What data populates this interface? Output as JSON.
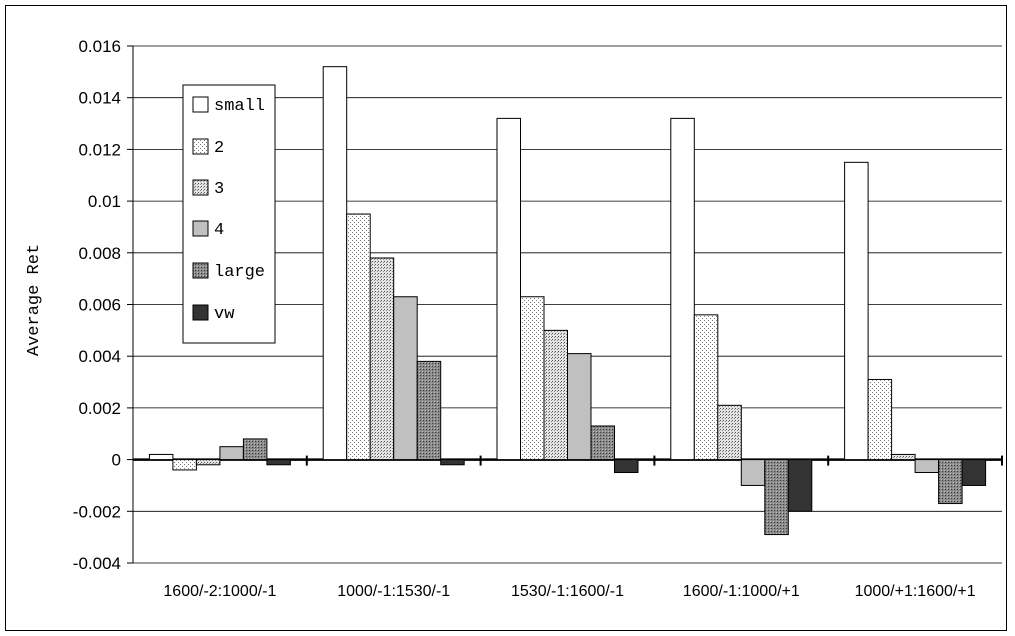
{
  "chart_data": {
    "type": "bar",
    "title": "",
    "xlabel": "",
    "ylabel": "Average Ret",
    "ylim": [
      -0.004,
      0.016
    ],
    "yticks": [
      "0.016",
      "0.014",
      "0.012",
      "0.01",
      "0.008",
      "0.006",
      "0.004",
      "0.002",
      "0",
      "-0.002",
      "-0.004"
    ],
    "grid": true,
    "legend_position": "top-left",
    "categories": [
      "1600/-2:1000/-1",
      "1000/-1:1530/-1",
      "1530/-1:1600/-1",
      "1600/-1:1000/+1",
      "1000/+1:1600/+1"
    ],
    "series": [
      {
        "name": "small",
        "values": [
          0.0002,
          0.0152,
          0.0132,
          0.0132,
          0.0115
        ],
        "pattern": "white"
      },
      {
        "name": "2",
        "values": [
          -0.0004,
          0.0095,
          0.0063,
          0.0056,
          0.0031
        ],
        "pattern": "light-dots"
      },
      {
        "name": "3",
        "values": [
          -0.0002,
          0.0078,
          0.005,
          0.0021,
          0.0002
        ],
        "pattern": "dense-dots"
      },
      {
        "name": "4",
        "values": [
          0.0005,
          0.0063,
          0.0041,
          -0.001,
          -0.0005
        ],
        "pattern": "light-gray"
      },
      {
        "name": "large",
        "values": [
          0.0008,
          0.0038,
          0.0013,
          -0.0029,
          -0.0017
        ],
        "pattern": "dark-dots"
      },
      {
        "name": "vw",
        "values": [
          -0.0002,
          -0.0002,
          -0.0005,
          -0.002,
          -0.001
        ],
        "pattern": "black"
      }
    ]
  }
}
